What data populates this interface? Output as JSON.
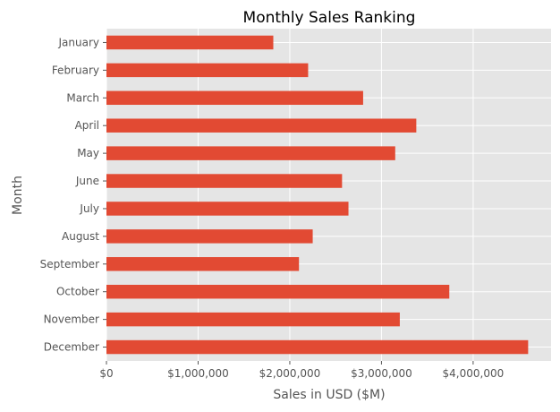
{
  "chart_data": {
    "type": "bar",
    "orientation": "horizontal",
    "title": "Monthly Sales Ranking",
    "xlabel": "Sales in USD ($M)",
    "ylabel": "Month",
    "categories": [
      "January",
      "February",
      "March",
      "April",
      "May",
      "June",
      "July",
      "August",
      "September",
      "October",
      "November",
      "December"
    ],
    "values": [
      1820000,
      2200000,
      2800000,
      3380000,
      3150000,
      2570000,
      2640000,
      2250000,
      2100000,
      3740000,
      3200000,
      4600000
    ],
    "xlim": [
      0,
      4850000
    ],
    "xticks": [
      0,
      1000000,
      2000000,
      3000000,
      4000000
    ],
    "xtick_labels": [
      "$0",
      "$1,000,000",
      "$2,000,000",
      "$3,000,000",
      "$4,000,000"
    ],
    "grid": true,
    "colors": {
      "bar": "#E24A33",
      "plot_background": "#E5E5E5",
      "grid": "#FFFFFF"
    }
  }
}
